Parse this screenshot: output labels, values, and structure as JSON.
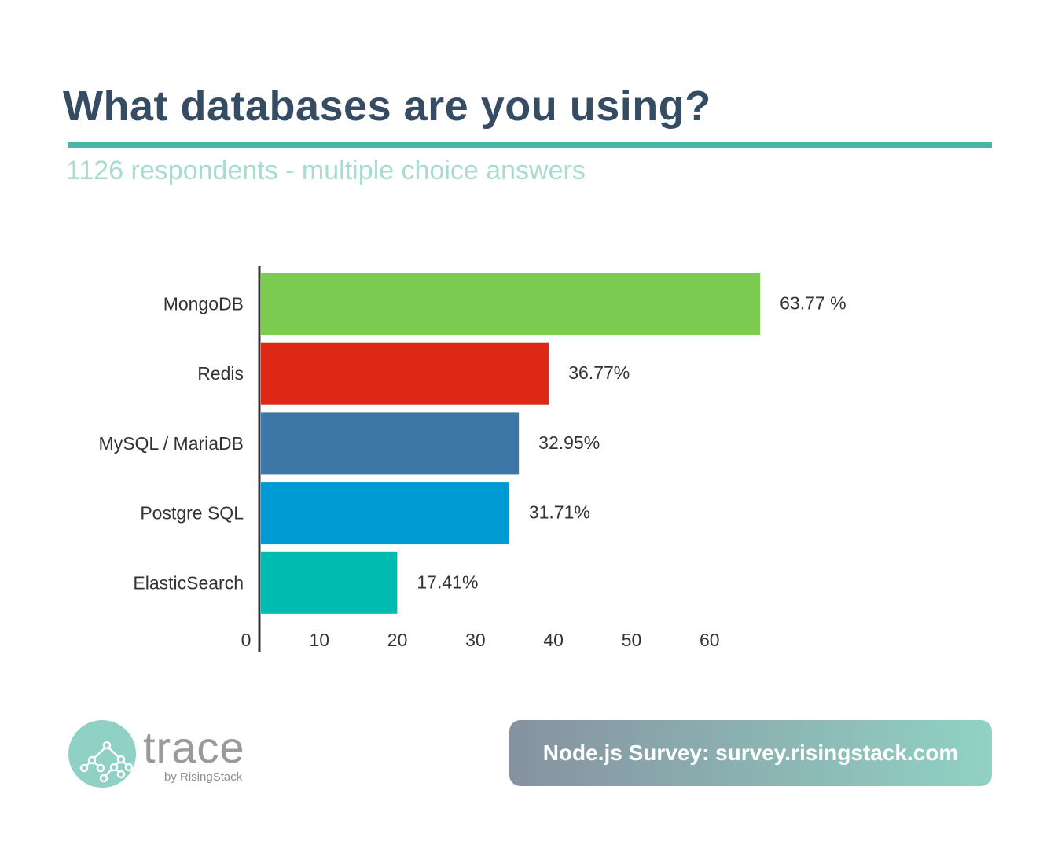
{
  "header": {
    "title": "What databases are you using?",
    "subtitle": "1126 respondents - multiple choice answers"
  },
  "chart_data": {
    "type": "bar",
    "orientation": "horizontal",
    "title": "What databases are you using?",
    "subtitle": "1126 respondents - multiple choice answers",
    "categories": [
      "MongoDB",
      "Redis",
      "MySQL / MariaDB",
      "Postgre SQL",
      "ElasticSearch"
    ],
    "values": [
      63.77,
      36.77,
      32.95,
      31.71,
      17.41
    ],
    "value_labels": [
      "63.77 %",
      "36.77%",
      "32.95%",
      "31.71%",
      "17.41%"
    ],
    "colors": [
      "#7ecb51",
      "#dc2815",
      "#3c77a7",
      "#009bd4",
      "#00bbb1"
    ],
    "xticks": [
      0,
      10,
      20,
      30,
      40,
      50,
      60
    ],
    "xlim": [
      0,
      70
    ],
    "xlabel": "",
    "ylabel": "",
    "grid": false
  },
  "footer": {
    "logo_word": "trace",
    "logo_by": "by RisingStack",
    "banner": "Node.js Survey: survey.risingstack.com"
  }
}
